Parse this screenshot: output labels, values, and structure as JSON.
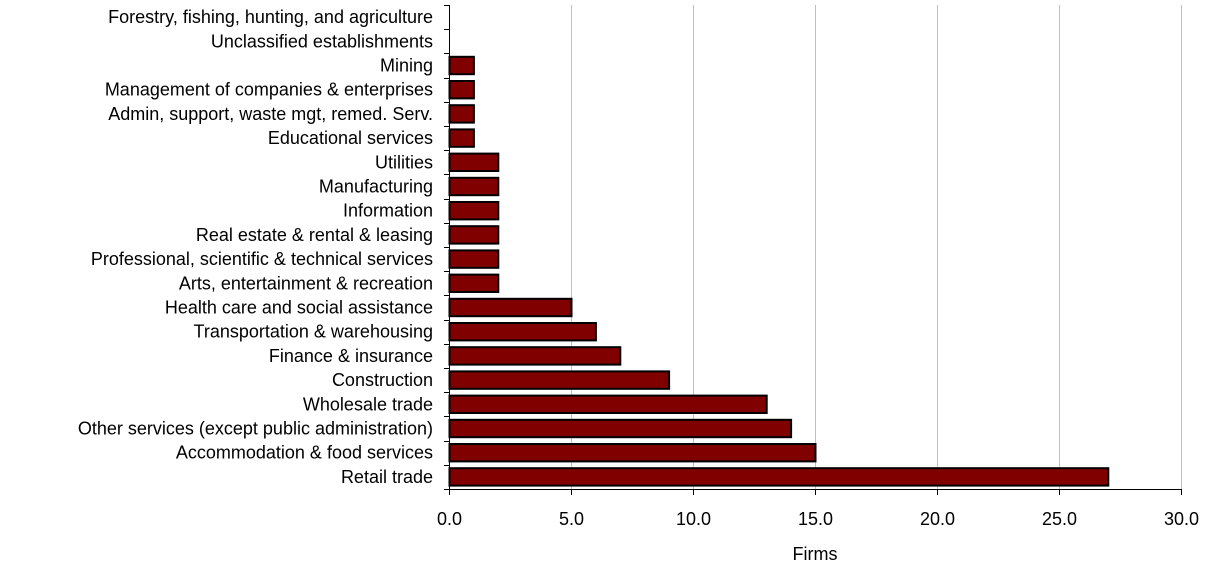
{
  "chart_data": {
    "type": "bar",
    "orientation": "horizontal",
    "title": "",
    "xlabel": "Firms",
    "ylabel": "",
    "xlim": [
      0,
      30
    ],
    "x_ticks": [
      "0.0",
      "5.0",
      "10.0",
      "15.0",
      "20.0",
      "25.0",
      "30.0"
    ],
    "grid": true,
    "legend": "none",
    "bar_color": "#800000",
    "bar_edge_color": "#000000",
    "grid_color": "#c0c0c0",
    "categories": [
      "Forestry, fishing, hunting, and agriculture",
      "Unclassified establishments",
      "Mining",
      "Management of companies & enterprises",
      "Admin, support, waste mgt, remed. Serv.",
      "Educational services",
      "Utilities",
      "Manufacturing",
      "Information",
      "Real estate & rental & leasing",
      "Professional, scientific & technical services",
      "Arts, entertainment & recreation",
      "Health care and social assistance",
      "Transportation & warehousing",
      "Finance & insurance",
      "Construction",
      "Wholesale trade",
      "Other services (except public administration)",
      "Accommodation & food services",
      "Retail trade"
    ],
    "values": [
      0,
      0,
      1,
      1,
      1,
      1,
      2,
      2,
      2,
      2,
      2,
      2,
      5,
      6,
      7,
      9,
      13,
      14,
      15,
      27
    ]
  }
}
